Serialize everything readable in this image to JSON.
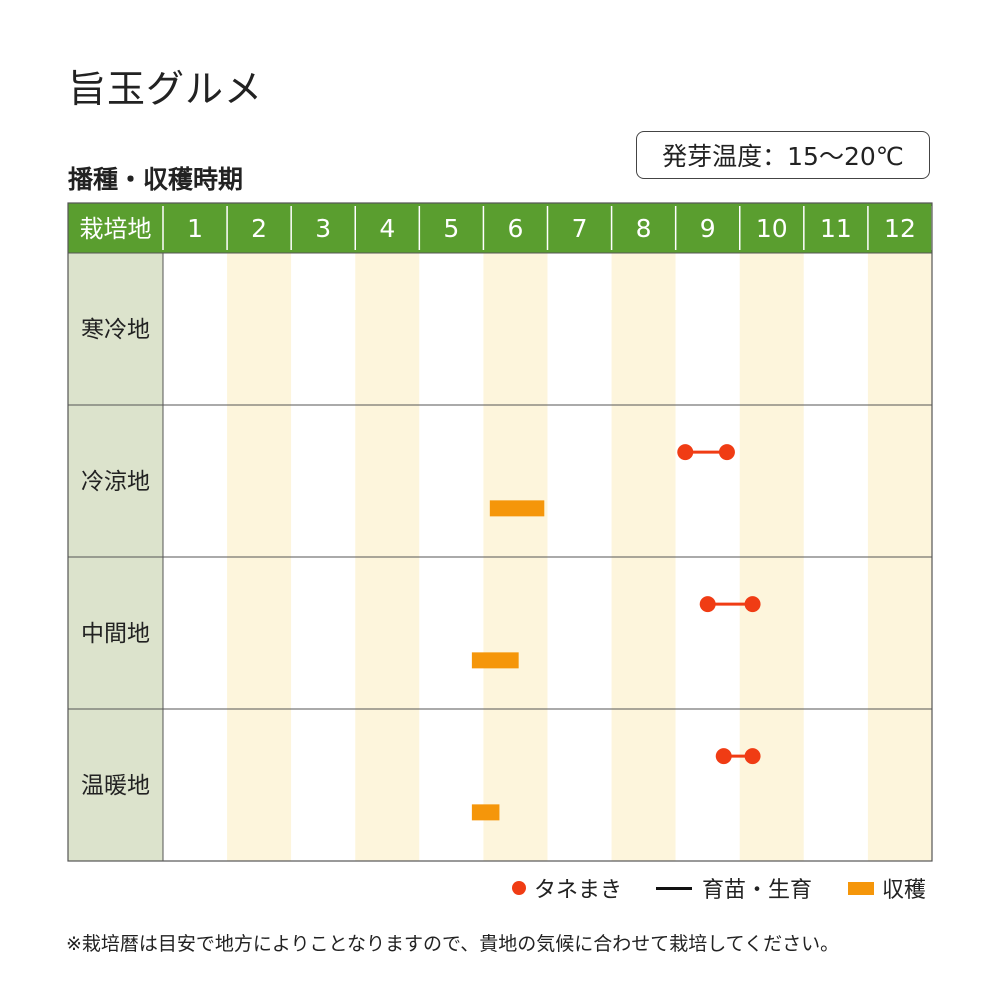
{
  "title": "旨玉グルメ",
  "subtitle": "播種・収穫時期",
  "temperature": "発芽温度：15〜20℃",
  "colors": {
    "header": "#5a9e2f",
    "header_text": "#ffffff",
    "region_bg": "#dce3cc",
    "alt_month_bg": "#fdf5dc",
    "sowing": "#f03c14",
    "nursery": "#111111",
    "harvest": "#f5960a"
  },
  "chart_data": {
    "type": "gantt",
    "corner_label": "栽培地",
    "months": [
      "1",
      "2",
      "3",
      "4",
      "5",
      "6",
      "7",
      "8",
      "9",
      "10",
      "11",
      "12"
    ],
    "rows": [
      {
        "region": "寒冷地",
        "sowing": null,
        "harvest": null
      },
      {
        "region": "冷涼地",
        "sowing": [
          9.15,
          9.8
        ],
        "harvest": [
          6.1,
          6.95
        ]
      },
      {
        "region": "中間地",
        "sowing": [
          9.5,
          10.2
        ],
        "harvest": [
          5.82,
          6.55
        ]
      },
      {
        "region": "温暖地",
        "sowing": [
          9.75,
          10.2
        ],
        "harvest": [
          5.82,
          6.25
        ]
      }
    ],
    "legend": [
      {
        "key": "sowing",
        "label": "タネまき",
        "icon": "dot-icon"
      },
      {
        "key": "nursery",
        "label": "育苗・生育",
        "icon": "line-icon"
      },
      {
        "key": "harvest",
        "label": "収穫",
        "icon": "bar-icon"
      }
    ]
  },
  "note": "※栽培暦は目安で地方によりことなりますので、貴地の気候に合わせて栽培してください。"
}
